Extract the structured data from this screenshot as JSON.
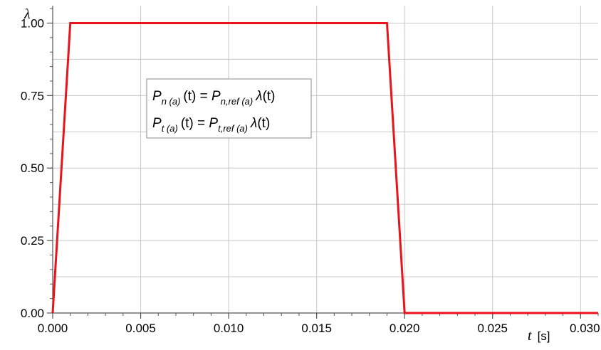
{
  "chart_data": {
    "type": "line",
    "title": "",
    "xlabel_var": "t",
    "xlabel_unit": "[s]",
    "ylabel": "λ",
    "xlim": [
      0.0,
      0.031
    ],
    "ylim": [
      0.0,
      1.06
    ],
    "x_ticks": [
      0.0,
      0.005,
      0.01,
      0.015,
      0.02,
      0.025,
      0.03
    ],
    "x_tick_labels": [
      "0.000",
      "0.005",
      "0.010",
      "0.015",
      "0.020",
      "0.025",
      "0.030"
    ],
    "y_ticks": [
      0.0,
      0.25,
      0.5,
      0.75,
      1.0
    ],
    "y_tick_labels": [
      "0.00",
      "0.25",
      "0.50",
      "0.75",
      "1.00"
    ],
    "grid": true,
    "series": [
      {
        "color": "#e8141c",
        "points": [
          [
            0.0,
            0.0
          ],
          [
            0.001,
            1.0
          ],
          [
            0.019,
            1.0
          ],
          [
            0.02,
            0.0
          ],
          [
            0.031,
            0.0
          ]
        ]
      }
    ],
    "annotation": {
      "line1": {
        "P": "P",
        "sub1": "n (a)",
        "arg": "(t) = ",
        "P2": "P",
        "sub2": "n,ref (a)",
        "lam": "λ",
        "arg2": "(t)"
      },
      "line2": {
        "P": "P",
        "sub1": "t (a)",
        "arg": "(t) = ",
        "P2": "P",
        "sub2": "t,ref (a)",
        "lam": "λ",
        "arg2": "(t)"
      }
    }
  }
}
